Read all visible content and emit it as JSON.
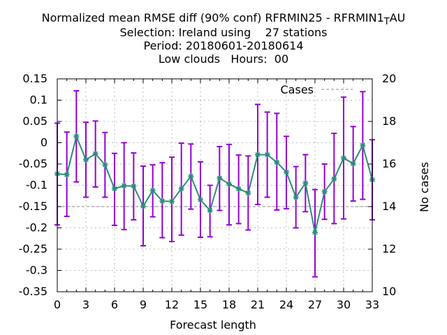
{
  "chart_data": {
    "type": "line",
    "title_lines": [
      "Normalized mean RMSE diff (90% conf) RFRMIN25 - RFRMIN1_TAU",
      "Selection: Ireland using    27 stations",
      "Period: 20180601-20180614",
      "Low clouds   Hours:  00"
    ],
    "title_main": "Normalized mean RMSE diff (90% conf) RFRMIN25 - RFRMIN1",
    "title_sub": "T",
    "title_tail": "AU",
    "xlabel": "Forecast length",
    "ylabel": "",
    "y2label": "No cases",
    "xlim": [
      0,
      33
    ],
    "ylim": [
      -0.35,
      0.15
    ],
    "y2lim": [
      10,
      20
    ],
    "xticks": [
      0,
      3,
      6,
      9,
      12,
      15,
      18,
      21,
      24,
      27,
      30,
      33
    ],
    "yticks": [
      "0.15",
      "0.1",
      "0.05",
      "0",
      "-0.05",
      "-0.1",
      "-0.15",
      "-0.2",
      "-0.25",
      "-0.3",
      "-0.35"
    ],
    "y2ticks": [
      "20",
      "18",
      "16",
      "14",
      "12",
      "10"
    ],
    "grid": true,
    "legend_position": "top-right",
    "series": [
      {
        "name": "Cases",
        "kind": "dashed-line",
        "axis": "y2",
        "color": "#a0a0a0",
        "x": [
          0,
          33
        ],
        "y": [
          14,
          14
        ]
      },
      {
        "name": "",
        "kind": "line-errorbar",
        "axis": "y",
        "line_color": "#2e8b7a",
        "marker_color": "#2e8b7a",
        "errorbar_color": "#9400d3",
        "x": [
          0,
          1,
          2,
          3,
          4,
          5,
          6,
          7,
          8,
          9,
          10,
          11,
          12,
          13,
          14,
          15,
          16,
          17,
          18,
          19,
          20,
          21,
          22,
          23,
          24,
          25,
          26,
          27,
          28,
          29,
          30,
          31,
          32,
          33
        ],
        "y": [
          -0.073,
          -0.075,
          0.015,
          -0.04,
          -0.026,
          -0.052,
          -0.108,
          -0.101,
          -0.102,
          -0.149,
          -0.112,
          -0.137,
          -0.138,
          -0.108,
          -0.079,
          -0.134,
          -0.159,
          -0.083,
          -0.097,
          -0.108,
          -0.118,
          -0.028,
          -0.028,
          -0.046,
          -0.069,
          -0.128,
          -0.095,
          -0.211,
          -0.115,
          -0.085,
          -0.036,
          -0.049,
          -0.006,
          -0.087
        ],
        "lower": [
          -0.193,
          -0.173,
          -0.092,
          -0.128,
          -0.104,
          -0.128,
          -0.194,
          -0.204,
          -0.181,
          -0.242,
          -0.174,
          -0.223,
          -0.232,
          -0.217,
          -0.156,
          -0.222,
          -0.221,
          -0.159,
          -0.193,
          -0.19,
          -0.205,
          -0.145,
          -0.128,
          -0.158,
          -0.155,
          -0.2,
          -0.162,
          -0.315,
          -0.18,
          -0.19,
          -0.179,
          -0.137,
          -0.133,
          -0.181
        ],
        "upper": [
          0.046,
          0.025,
          0.122,
          0.048,
          0.051,
          0.024,
          -0.025,
          0.0,
          -0.024,
          -0.055,
          -0.052,
          -0.047,
          -0.034,
          -0.001,
          -0.003,
          -0.045,
          -0.1,
          -0.009,
          -0.004,
          -0.029,
          -0.031,
          0.09,
          0.072,
          0.069,
          0.015,
          -0.056,
          -0.028,
          -0.11,
          -0.05,
          0.022,
          0.107,
          0.038,
          0.12,
          0.007
        ]
      }
    ]
  }
}
